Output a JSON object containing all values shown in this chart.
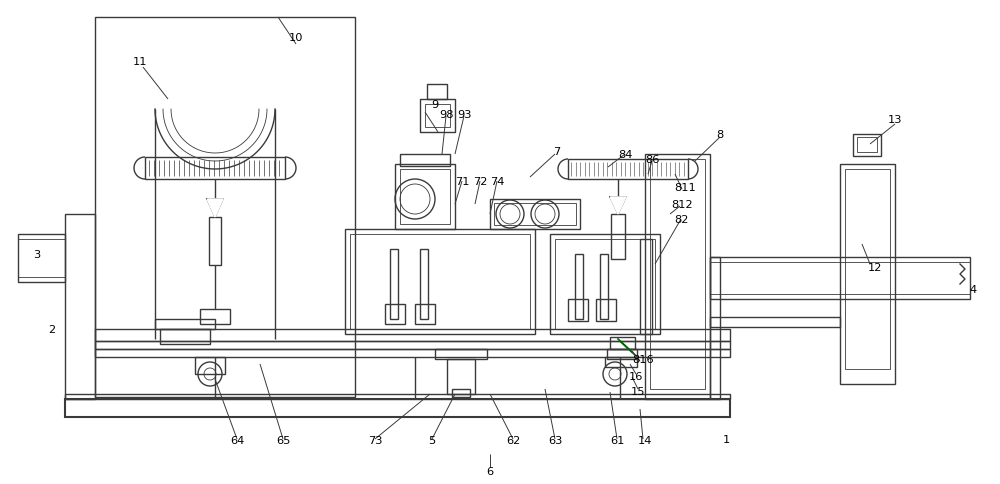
{
  "bg_color": "#ffffff",
  "lc": "#3a3a3a",
  "lw": 1.0,
  "tlw": 0.6,
  "thklw": 1.5
}
